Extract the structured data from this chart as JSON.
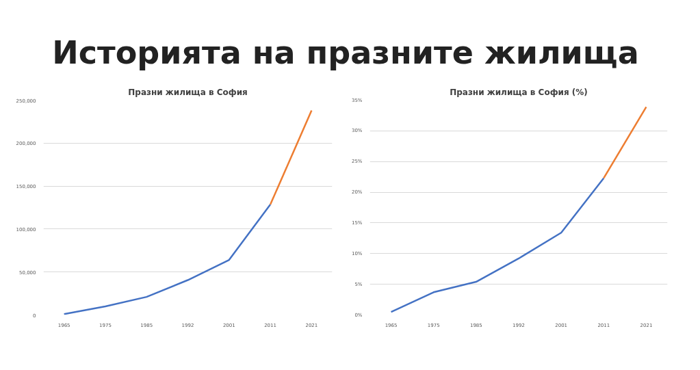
{
  "chart_data": [
    {
      "type": "line",
      "title": "Историята на празните жилища",
      "subtitle": "Празни жилища в София",
      "categories": [
        "1965",
        "1975",
        "1985",
        "1992",
        "2001",
        "2011",
        "2021"
      ],
      "series": [
        {
          "color": "#4472c4",
          "values": [
            1000,
            10000,
            21000,
            40600,
            64000,
            128500,
            null
          ]
        },
        {
          "color": "#ed7d31",
          "values": [
            null,
            null,
            null,
            null,
            null,
            128500,
            238000
          ]
        }
      ],
      "ylim": [
        0,
        250000
      ],
      "yticks": [
        {
          "value": 0,
          "label": "0"
        },
        {
          "value": 50000,
          "label": "50,000"
        },
        {
          "value": 100000,
          "label": "100,000"
        },
        {
          "value": 150000,
          "label": "150,000"
        },
        {
          "value": 200000,
          "label": "200,000"
        },
        {
          "value": 250000,
          "label": "250,000"
        }
      ],
      "grid": "y"
    },
    {
      "type": "line",
      "title": "Празни жилища в София (%)",
      "categories": [
        "1965",
        "1975",
        "1985",
        "1992",
        "2001",
        "2011",
        "2021"
      ],
      "series": [
        {
          "color": "#4472c4",
          "values": [
            0.5,
            3.7,
            5.4,
            9.2,
            13.4,
            22.3,
            null
          ]
        },
        {
          "color": "#ed7d31",
          "values": [
            null,
            null,
            null,
            null,
            null,
            22.3,
            33.9
          ]
        }
      ],
      "ylim": [
        0,
        35
      ],
      "yticks": [
        {
          "value": 0,
          "label": "0%"
        },
        {
          "value": 5,
          "label": "5%"
        },
        {
          "value": 10,
          "label": "10%"
        },
        {
          "value": 15,
          "label": "15%"
        },
        {
          "value": 20,
          "label": "20%"
        },
        {
          "value": 25,
          "label": "25%"
        },
        {
          "value": 30,
          "label": "30%"
        },
        {
          "value": 35,
          "label": "35%"
        }
      ],
      "grid": "y"
    }
  ]
}
